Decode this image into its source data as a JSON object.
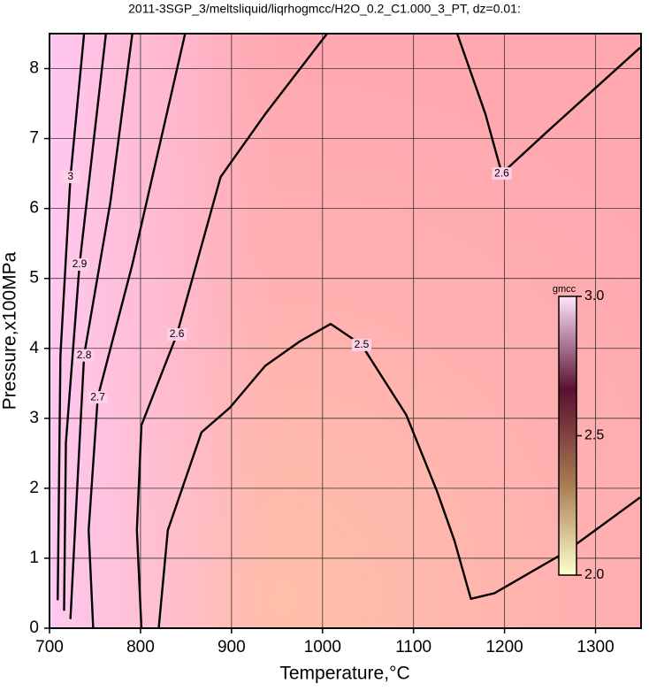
{
  "chart_data": {
    "type": "contour",
    "title": "2011-3SGP_3/meltsliquid/liqrhogmcc/H2O_0.2_C1.000_3_PT, dz=0.01:",
    "xlabel": "Temperature,°C",
    "ylabel": "Pressure,x100MPa",
    "xlim": [
      700,
      1350
    ],
    "ylim": [
      0,
      8.5
    ],
    "xticks": [
      700,
      800,
      900,
      1000,
      1100,
      1200,
      1300
    ],
    "yticks": [
      0,
      1,
      2,
      3,
      4,
      5,
      6,
      7,
      8
    ],
    "grid": true,
    "contours": [
      {
        "level": 2.5,
        "x": [
          820,
          830,
          867,
          898,
          937,
          975,
          1009,
          1043,
          1092,
          1126,
          1145,
          1163,
          1189,
          1266,
          1349
        ],
        "y": [
          0,
          1.4,
          2.8,
          3.15,
          3.75,
          4.1,
          4.35,
          4.05,
          3.05,
          1.95,
          1.25,
          0.42,
          0.5,
          1.08,
          1.87
        ]
      },
      {
        "level": 2.6,
        "x": [
          801,
          796,
          801,
          840,
          888,
          937,
          1005
        ],
        "y": [
          0,
          1.4,
          2.9,
          4.2,
          6.45,
          7.35,
          8.5
        ]
      },
      {
        "level": 2.6,
        "x": [
          1148,
          1179,
          1197,
          1247,
          1349
        ],
        "y": [
          8.5,
          7.35,
          6.5,
          7.1,
          8.3
        ]
      },
      {
        "level": 2.7,
        "x": [
          748,
          743,
          753,
          791,
          849
        ],
        "y": [
          0,
          1.4,
          3.3,
          5.2,
          8.5
        ]
      },
      {
        "level": 2.8,
        "x": [
          723,
          728,
          738,
          767,
          791
        ],
        "y": [
          0.13,
          1.4,
          3.9,
          6.1,
          8.5
        ]
      },
      {
        "level": 2.9,
        "x": [
          716,
          718,
          733,
          762
        ],
        "y": [
          0.25,
          2.65,
          5.2,
          8.5
        ]
      },
      {
        "level": 3,
        "x": [
          709,
          712,
          723,
          738
        ],
        "y": [
          0.4,
          3.9,
          6.45,
          8.5
        ]
      }
    ],
    "colorbar": {
      "label": "gmcc",
      "lim": [
        2,
        3
      ],
      "ticks": [
        {
          "value": 2,
          "label": "2.0"
        },
        {
          "value": 2.5,
          "label": "2.5"
        },
        {
          "value": 3,
          "label": "3.0"
        }
      ],
      "colors": [
        "#ffffcc",
        "#a87850",
        "#5a1030",
        "#ffe4ff"
      ]
    }
  }
}
